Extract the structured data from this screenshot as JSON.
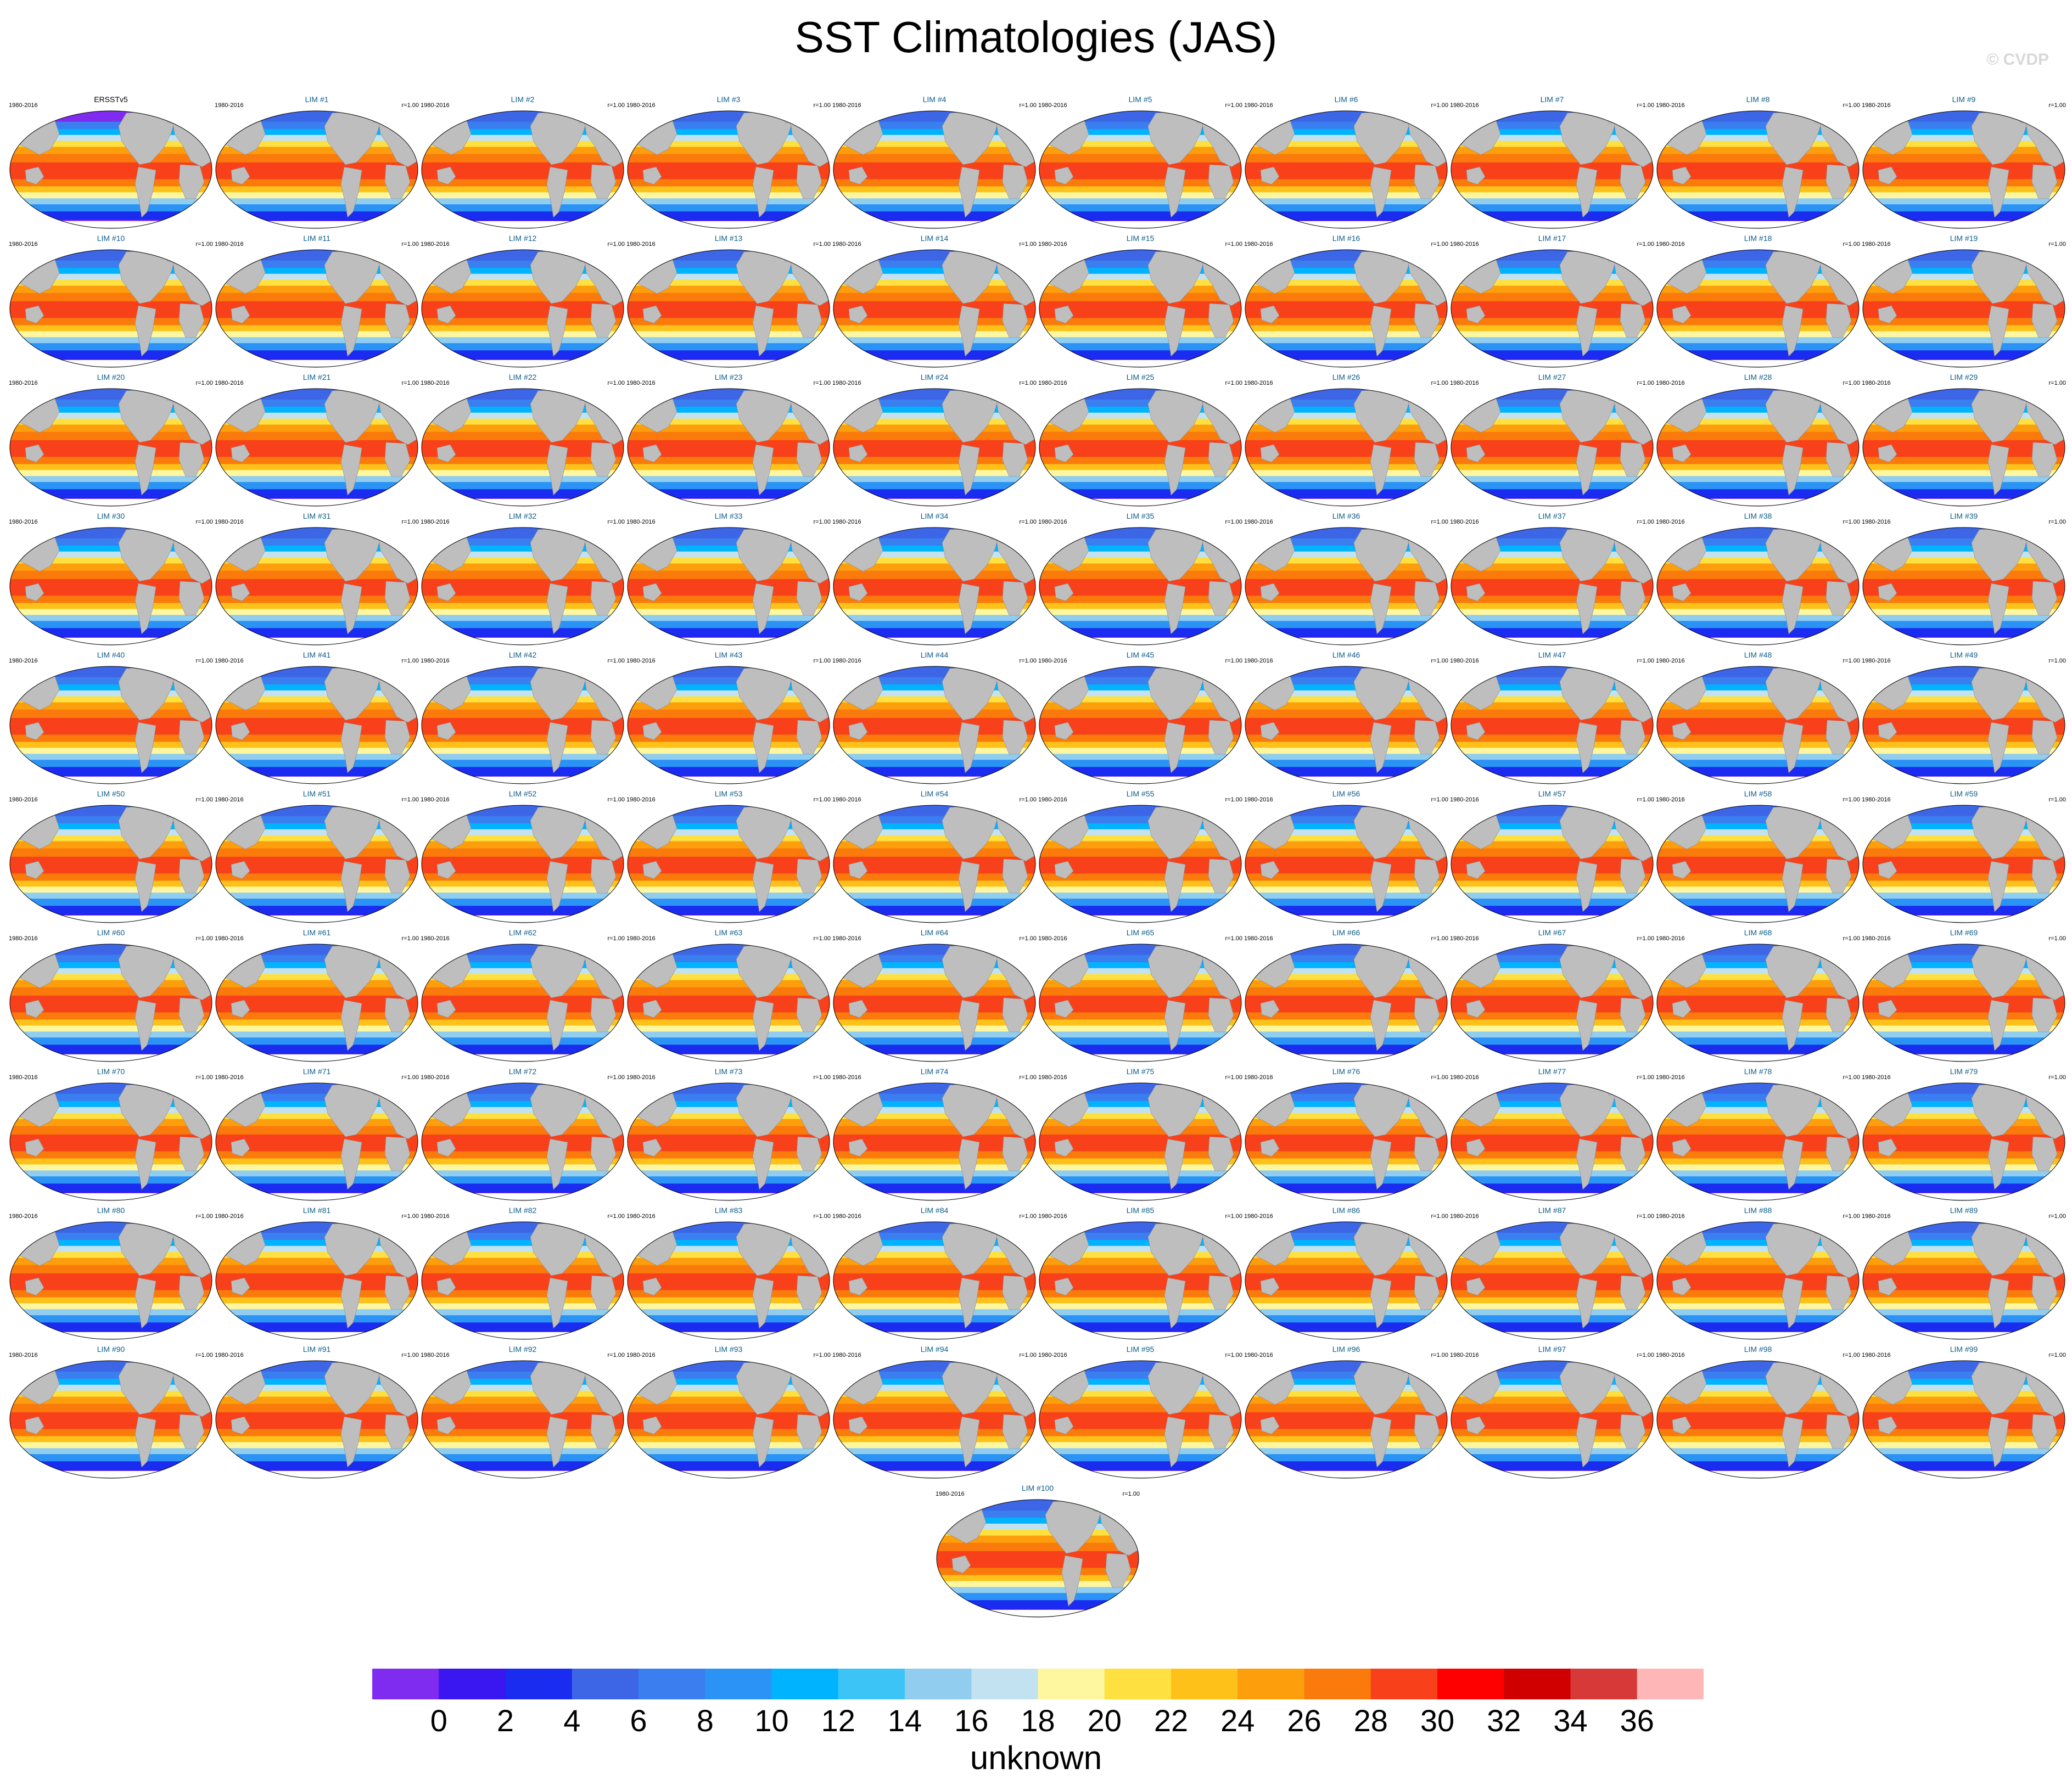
{
  "title": "SST Climatologies (JAS)",
  "watermark": "© CVDP",
  "panels": {
    "observation": {
      "title": "ERSSTv5",
      "years": "1980-2016"
    },
    "model_years": "1980-2016",
    "model_correlation": "r=1.00",
    "model_titles": [
      "LIM #1",
      "LIM #2",
      "LIM #3",
      "LIM #4",
      "LIM #5",
      "LIM #6",
      "LIM #7",
      "LIM #8",
      "LIM #9",
      "LIM #10",
      "LIM #11",
      "LIM #12",
      "LIM #13",
      "LIM #14",
      "LIM #15",
      "LIM #16",
      "LIM #17",
      "LIM #18",
      "LIM #19",
      "LIM #20",
      "LIM #21",
      "LIM #22",
      "LIM #23",
      "LIM #24",
      "LIM #25",
      "LIM #26",
      "LIM #27",
      "LIM #28",
      "LIM #29",
      "LIM #30",
      "LIM #31",
      "LIM #32",
      "LIM #33",
      "LIM #34",
      "LIM #35",
      "LIM #36",
      "LIM #37",
      "LIM #38",
      "LIM #39",
      "LIM #40",
      "LIM #41",
      "LIM #42",
      "LIM #43",
      "LIM #44",
      "LIM #45",
      "LIM #46",
      "LIM #47",
      "LIM #48",
      "LIM #49",
      "LIM #50",
      "LIM #51",
      "LIM #52",
      "LIM #53",
      "LIM #54",
      "LIM #55",
      "LIM #56",
      "LIM #57",
      "LIM #58",
      "LIM #59",
      "LIM #60",
      "LIM #61",
      "LIM #62",
      "LIM #63",
      "LIM #64",
      "LIM #65",
      "LIM #66",
      "LIM #67",
      "LIM #68",
      "LIM #69",
      "LIM #70",
      "LIM #71",
      "LIM #72",
      "LIM #73",
      "LIM #74",
      "LIM #75",
      "LIM #76",
      "LIM #77",
      "LIM #78",
      "LIM #79",
      "LIM #80",
      "LIM #81",
      "LIM #82",
      "LIM #83",
      "LIM #84",
      "LIM #85",
      "LIM #86",
      "LIM #87",
      "LIM #88",
      "LIM #89",
      "LIM #90",
      "LIM #91",
      "LIM #92",
      "LIM #93",
      "LIM #94",
      "LIM #95",
      "LIM #96",
      "LIM #97",
      "LIM #98",
      "LIM #99",
      "LIM #100"
    ]
  },
  "colorbar": {
    "colors": [
      "#7f2cf0",
      "#3a16f0",
      "#1a2cf0",
      "#3d66e6",
      "#3a7ef0",
      "#2b93f5",
      "#00b3ff",
      "#3cc4f7",
      "#91cdef",
      "#c2e2f2",
      "#fff7a0",
      "#fee040",
      "#fdc11a",
      "#fd9e0c",
      "#fb7a0c",
      "#f8411a",
      "#ff0000",
      "#d00000",
      "#d73838",
      "#ffb6b6"
    ],
    "tick_labels": [
      "0",
      "2",
      "4",
      "6",
      "8",
      "10",
      "12",
      "14",
      "16",
      "18",
      "20",
      "22",
      "24",
      "26",
      "28",
      "30",
      "32",
      "34",
      "36"
    ],
    "units": "unknown"
  },
  "map_colors": {
    "land": "#bebebe",
    "cold_obs": "#7f2cf0",
    "ice": "#ffffff"
  }
}
